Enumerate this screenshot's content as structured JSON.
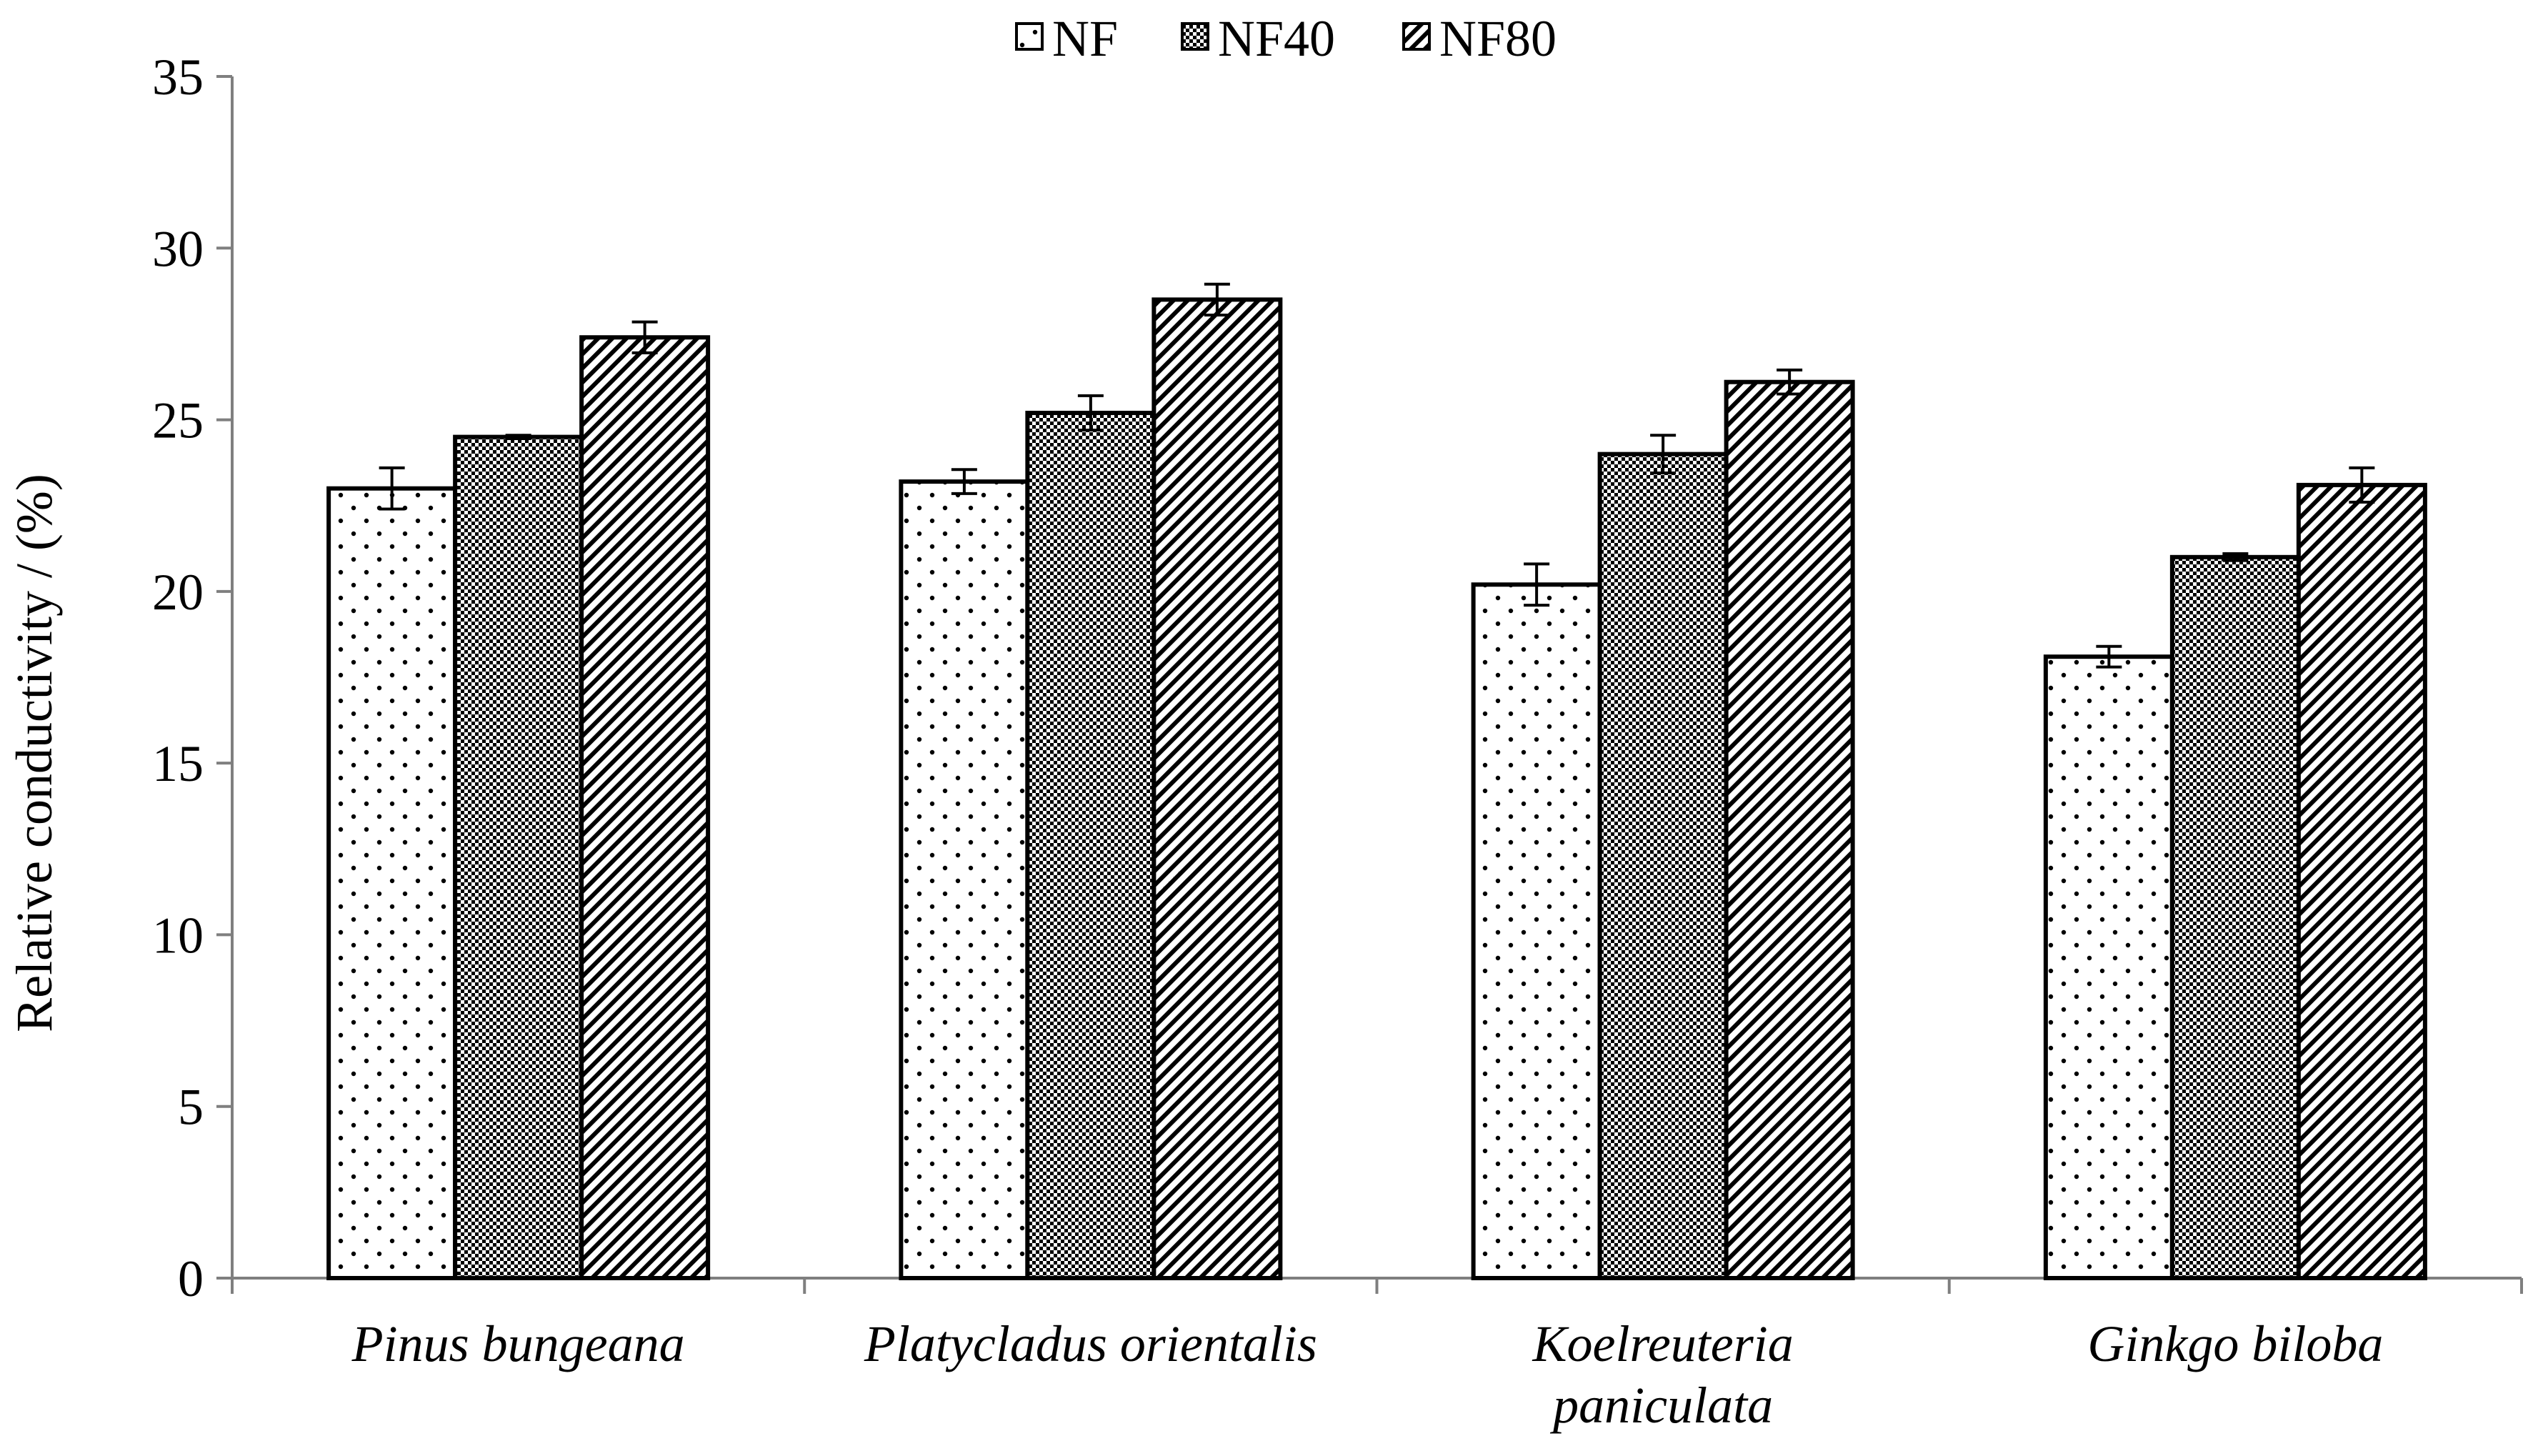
{
  "chart_data": {
    "type": "bar",
    "title": "",
    "xlabel": "",
    "ylabel": "Relative conductivity / (%)",
    "ylim": [
      0,
      35
    ],
    "yticks": [
      0,
      5,
      10,
      15,
      20,
      25,
      30,
      35
    ],
    "grid": false,
    "legend_position": "top-center",
    "categories": [
      [
        "Pinus bungeana"
      ],
      [
        "Platycladus orientalis"
      ],
      [
        "Koelreuteria",
        "paniculata"
      ],
      [
        "Ginkgo biloba"
      ]
    ],
    "series": [
      {
        "name": "NF",
        "pattern": "dots",
        "values": [
          23.0,
          23.2,
          20.2,
          18.1
        ],
        "errors": [
          0.6,
          0.35,
          0.6,
          0.3
        ]
      },
      {
        "name": "NF40",
        "pattern": "checker",
        "values": [
          24.5,
          25.2,
          24.0,
          21.0
        ],
        "errors": [
          0.05,
          0.5,
          0.55,
          0.1
        ]
      },
      {
        "name": "NF80",
        "pattern": "diagonal",
        "values": [
          27.4,
          28.5,
          26.1,
          23.1
        ],
        "errors": [
          0.45,
          0.45,
          0.35,
          0.5
        ]
      }
    ],
    "colors": {
      "bar_stroke": "#000000",
      "bar_fill": "#ffffff",
      "axis": "#7f7f7f"
    }
  }
}
